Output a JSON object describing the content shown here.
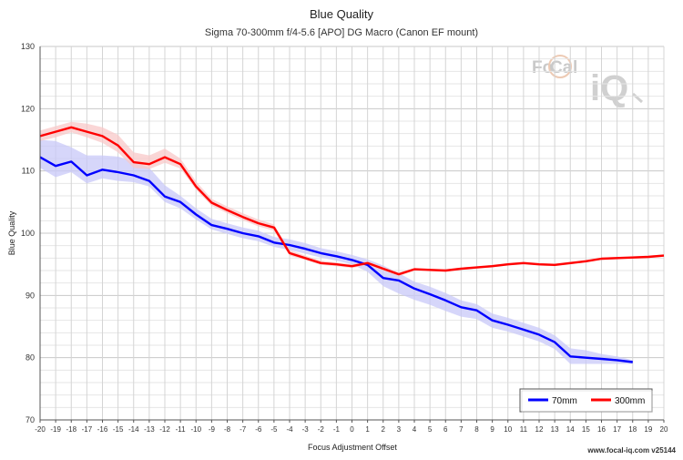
{
  "chart_data": {
    "type": "line",
    "title": "Blue Quality",
    "subtitle": "Sigma 70-300mm f/4-5.6 [APO] DG Macro (Canon EF mount)",
    "xlabel": "Focus Adjustment Offset",
    "ylabel": "Blue Quality",
    "xlim": [
      -20,
      20
    ],
    "ylim": [
      70,
      130
    ],
    "x_ticks": [
      -20,
      -19,
      -18,
      -17,
      -16,
      -15,
      -14,
      -13,
      -12,
      -11,
      -10,
      -9,
      -8,
      -7,
      -6,
      -5,
      -4,
      -3,
      -2,
      -1,
      0,
      1,
      2,
      3,
      4,
      5,
      6,
      7,
      8,
      9,
      10,
      11,
      12,
      13,
      14,
      15,
      16,
      17,
      18,
      19,
      20
    ],
    "y_ticks": [
      70,
      80,
      90,
      100,
      110,
      120,
      130
    ],
    "grid": true,
    "legend_position": "bottom-right",
    "series": [
      {
        "name": "70mm",
        "color": "#0000ff",
        "band_color": "#c8c8f8",
        "x": [
          -20,
          -19,
          -18,
          -17,
          -16,
          -15,
          -14,
          -13,
          -12,
          -11,
          -10,
          -9,
          -8,
          -7,
          -6,
          -5,
          -4,
          -3,
          -2,
          -1,
          0,
          1,
          2,
          3,
          4,
          5,
          6,
          7,
          8,
          9,
          10,
          11,
          12,
          13,
          14,
          15,
          16,
          17,
          18
        ],
        "y": [
          112.2,
          110.8,
          111.5,
          109.3,
          110.2,
          109.8,
          109.3,
          108.4,
          105.9,
          105.0,
          103.0,
          101.3,
          100.7,
          100.0,
          99.5,
          98.5,
          98.1,
          97.5,
          96.8,
          96.3,
          95.7,
          94.9,
          92.8,
          92.4,
          91.1,
          90.2,
          89.2,
          88.1,
          87.6,
          86.0,
          85.3,
          84.5,
          83.7,
          82.5,
          80.2,
          80.0,
          79.8,
          79.6,
          79.3
        ],
        "upper": [
          115.0,
          114.8,
          113.8,
          112.5,
          112.5,
          112.3,
          111.5,
          110.5,
          107.7,
          106.0,
          104.0,
          102.3,
          101.6,
          100.9,
          100.4,
          99.4,
          99.0,
          98.4,
          97.6,
          97.1,
          96.5,
          95.8,
          94.8,
          93.6,
          92.2,
          91.4,
          90.4,
          89.2,
          88.6,
          87.1,
          86.4,
          85.6,
          84.8,
          83.6,
          81.5,
          81.2,
          80.6,
          80.2,
          79.6
        ],
        "lower": [
          110.5,
          109.0,
          109.8,
          108.0,
          108.8,
          108.4,
          108.2,
          107.5,
          105.0,
          104.0,
          102.2,
          100.6,
          99.9,
          99.2,
          98.7,
          97.8,
          97.3,
          96.7,
          96.1,
          95.6,
          95.0,
          93.8,
          91.5,
          90.3,
          89.3,
          88.5,
          87.5,
          86.6,
          86.2,
          84.8,
          84.2,
          83.4,
          82.6,
          81.4,
          79.0,
          79.0,
          79.0,
          79.0,
          79.0
        ]
      },
      {
        "name": "300mm",
        "color": "#ff0000",
        "band_color": "#f8c8c8",
        "x": [
          -20,
          -19,
          -18,
          -17,
          -16,
          -15,
          -14,
          -13,
          -12,
          -11,
          -10,
          -9,
          -8,
          -7,
          -6,
          -5,
          -4,
          -3,
          -2,
          -1,
          0,
          1,
          2,
          3,
          4,
          5,
          6,
          7,
          8,
          9,
          10,
          11,
          12,
          13,
          14,
          15,
          16,
          17,
          18,
          19,
          20
        ],
        "y": [
          115.6,
          116.3,
          117.0,
          116.3,
          115.6,
          114.1,
          111.4,
          111.1,
          112.2,
          111.1,
          107.5,
          104.9,
          103.7,
          102.6,
          101.6,
          100.9,
          96.8,
          96.0,
          95.2,
          95.0,
          94.7,
          95.2,
          94.3,
          93.4,
          94.2,
          94.1,
          94.0,
          94.3,
          94.5,
          94.7,
          95.0,
          95.2,
          95.0,
          94.9,
          95.2,
          95.5,
          95.9,
          96.0,
          96.1,
          96.2,
          96.4
        ],
        "upper": [
          116.5,
          117.2,
          117.9,
          117.6,
          117.0,
          115.8,
          113.0,
          112.5,
          113.6,
          112.0,
          108.3,
          105.5,
          104.3,
          103.2,
          102.2,
          101.4,
          97.3,
          96.4,
          95.6,
          95.3,
          95.0,
          95.5,
          94.6,
          93.7,
          94.4,
          94.3,
          94.2,
          94.5,
          94.7,
          94.9,
          95.2,
          95.4,
          95.2,
          95.1,
          95.4,
          95.7,
          96.1,
          96.2,
          96.3,
          96.4,
          96.6
        ],
        "lower": [
          114.8,
          115.4,
          116.2,
          115.4,
          114.5,
          113.0,
          110.5,
          110.3,
          111.3,
          110.4,
          107.0,
          104.4,
          103.2,
          102.1,
          101.1,
          100.4,
          96.4,
          95.7,
          94.9,
          94.7,
          94.4,
          94.9,
          94.0,
          93.1,
          94.0,
          93.9,
          93.8,
          94.1,
          94.3,
          94.5,
          94.8,
          95.0,
          94.8,
          94.7,
          95.0,
          95.3,
          95.7,
          95.8,
          95.9,
          96.0,
          96.2
        ]
      }
    ]
  },
  "watermark": {
    "logo_left": "Fo",
    "logo_mid": "Ca",
    "logo_right": "l",
    "logo_iq": "iQ"
  },
  "footer": {
    "credit": "www.focal-iq.com  v25144"
  }
}
